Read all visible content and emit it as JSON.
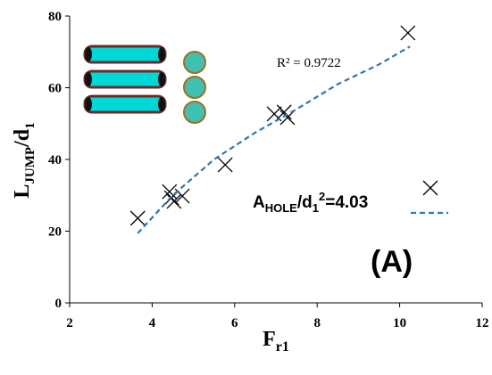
{
  "chart_data": {
    "type": "scatter",
    "xlabel_parts": [
      "F",
      "r1"
    ],
    "ylabel_parts": [
      "L",
      "JUMP",
      "/d",
      "1"
    ],
    "xlim": [
      2,
      12
    ],
    "xticks": [
      2,
      4,
      6,
      8,
      10,
      12
    ],
    "ylim": [
      0,
      80
    ],
    "yticks": [
      0,
      20,
      40,
      60,
      80
    ],
    "series": [
      {
        "color": "#000000",
        "marker": "x",
        "x": [
          3.65,
          4.42,
          4.47,
          4.53,
          4.73,
          5.77,
          6.96,
          7.2,
          7.28,
          10.2
        ],
        "values": [
          23.6,
          31,
          29.3,
          28.3,
          29.8,
          38.5,
          52.7,
          53.2,
          51.7,
          75.3
        ]
      },
      {
        "color": "#2e75b6",
        "line": "dashed",
        "x": [
          3.65,
          4.5,
          5.5,
          6.5,
          7.5,
          8.5,
          9.5,
          10.25
        ],
        "values": [
          19.4,
          30,
          40,
          47.5,
          54,
          61,
          66.5,
          71.5
        ]
      }
    ],
    "r_squared_label": "R² = 0.9722",
    "legend_label_parts": [
      "A",
      "HOLE",
      "/d",
      "1",
      "2",
      "=4.03"
    ],
    "panel_label": "(A)"
  }
}
